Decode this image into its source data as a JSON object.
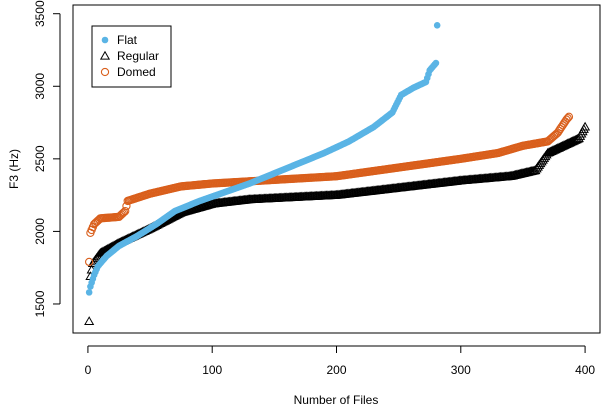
{
  "chart_data": {
    "type": "scatter",
    "xlabel": "Number of Files",
    "ylabel": "F3 (Hz)",
    "xlim": [
      -12,
      412
    ],
    "ylim": [
      1300,
      3560
    ],
    "x_ticks": [
      0,
      100,
      200,
      300,
      400
    ],
    "y_ticks": [
      1500,
      2000,
      2500,
      3000,
      3500
    ],
    "grid": false,
    "legend_position": "top-left",
    "series": [
      {
        "name": "Flat",
        "marker": "filled-circle",
        "color": "#5ab4e5",
        "n": 281,
        "profile": [
          [
            1,
            1580
          ],
          [
            2,
            1620
          ],
          [
            5,
            1700
          ],
          [
            8,
            1760
          ],
          [
            15,
            1830
          ],
          [
            25,
            1900
          ],
          [
            40,
            1970
          ],
          [
            55,
            2050
          ],
          [
            70,
            2140
          ],
          [
            90,
            2210
          ],
          [
            110,
            2270
          ],
          [
            130,
            2330
          ],
          [
            150,
            2400
          ],
          [
            170,
            2470
          ],
          [
            190,
            2540
          ],
          [
            210,
            2620
          ],
          [
            230,
            2720
          ],
          [
            245,
            2820
          ],
          [
            252,
            2940
          ],
          [
            262,
            2990
          ],
          [
            272,
            3030
          ],
          [
            275,
            3110
          ],
          [
            280,
            3160
          ],
          [
            281,
            3420
          ]
        ]
      },
      {
        "name": "Regular",
        "marker": "open-triangle",
        "color": "#000000",
        "n": 400,
        "profile": [
          [
            1,
            1380
          ],
          [
            2,
            1690
          ],
          [
            4,
            1780
          ],
          [
            10,
            1850
          ],
          [
            25,
            1920
          ],
          [
            50,
            2020
          ],
          [
            75,
            2130
          ],
          [
            100,
            2190
          ],
          [
            130,
            2220
          ],
          [
            200,
            2250
          ],
          [
            300,
            2350
          ],
          [
            340,
            2380
          ],
          [
            360,
            2420
          ],
          [
            365,
            2480
          ],
          [
            370,
            2540
          ],
          [
            380,
            2580
          ],
          [
            395,
            2640
          ],
          [
            400,
            2720
          ]
        ]
      },
      {
        "name": "Domed",
        "marker": "open-circle",
        "color": "#d95f1c",
        "n": 387,
        "profile": [
          [
            1,
            1790
          ],
          [
            2,
            1990
          ],
          [
            5,
            2050
          ],
          [
            10,
            2090
          ],
          [
            25,
            2100
          ],
          [
            30,
            2140
          ],
          [
            32,
            2210
          ],
          [
            50,
            2260
          ],
          [
            75,
            2310
          ],
          [
            100,
            2330
          ],
          [
            150,
            2355
          ],
          [
            200,
            2380
          ],
          [
            250,
            2440
          ],
          [
            300,
            2500
          ],
          [
            330,
            2540
          ],
          [
            350,
            2590
          ],
          [
            370,
            2620
          ],
          [
            378,
            2680
          ],
          [
            385,
            2770
          ],
          [
            387,
            2790
          ]
        ]
      }
    ]
  }
}
